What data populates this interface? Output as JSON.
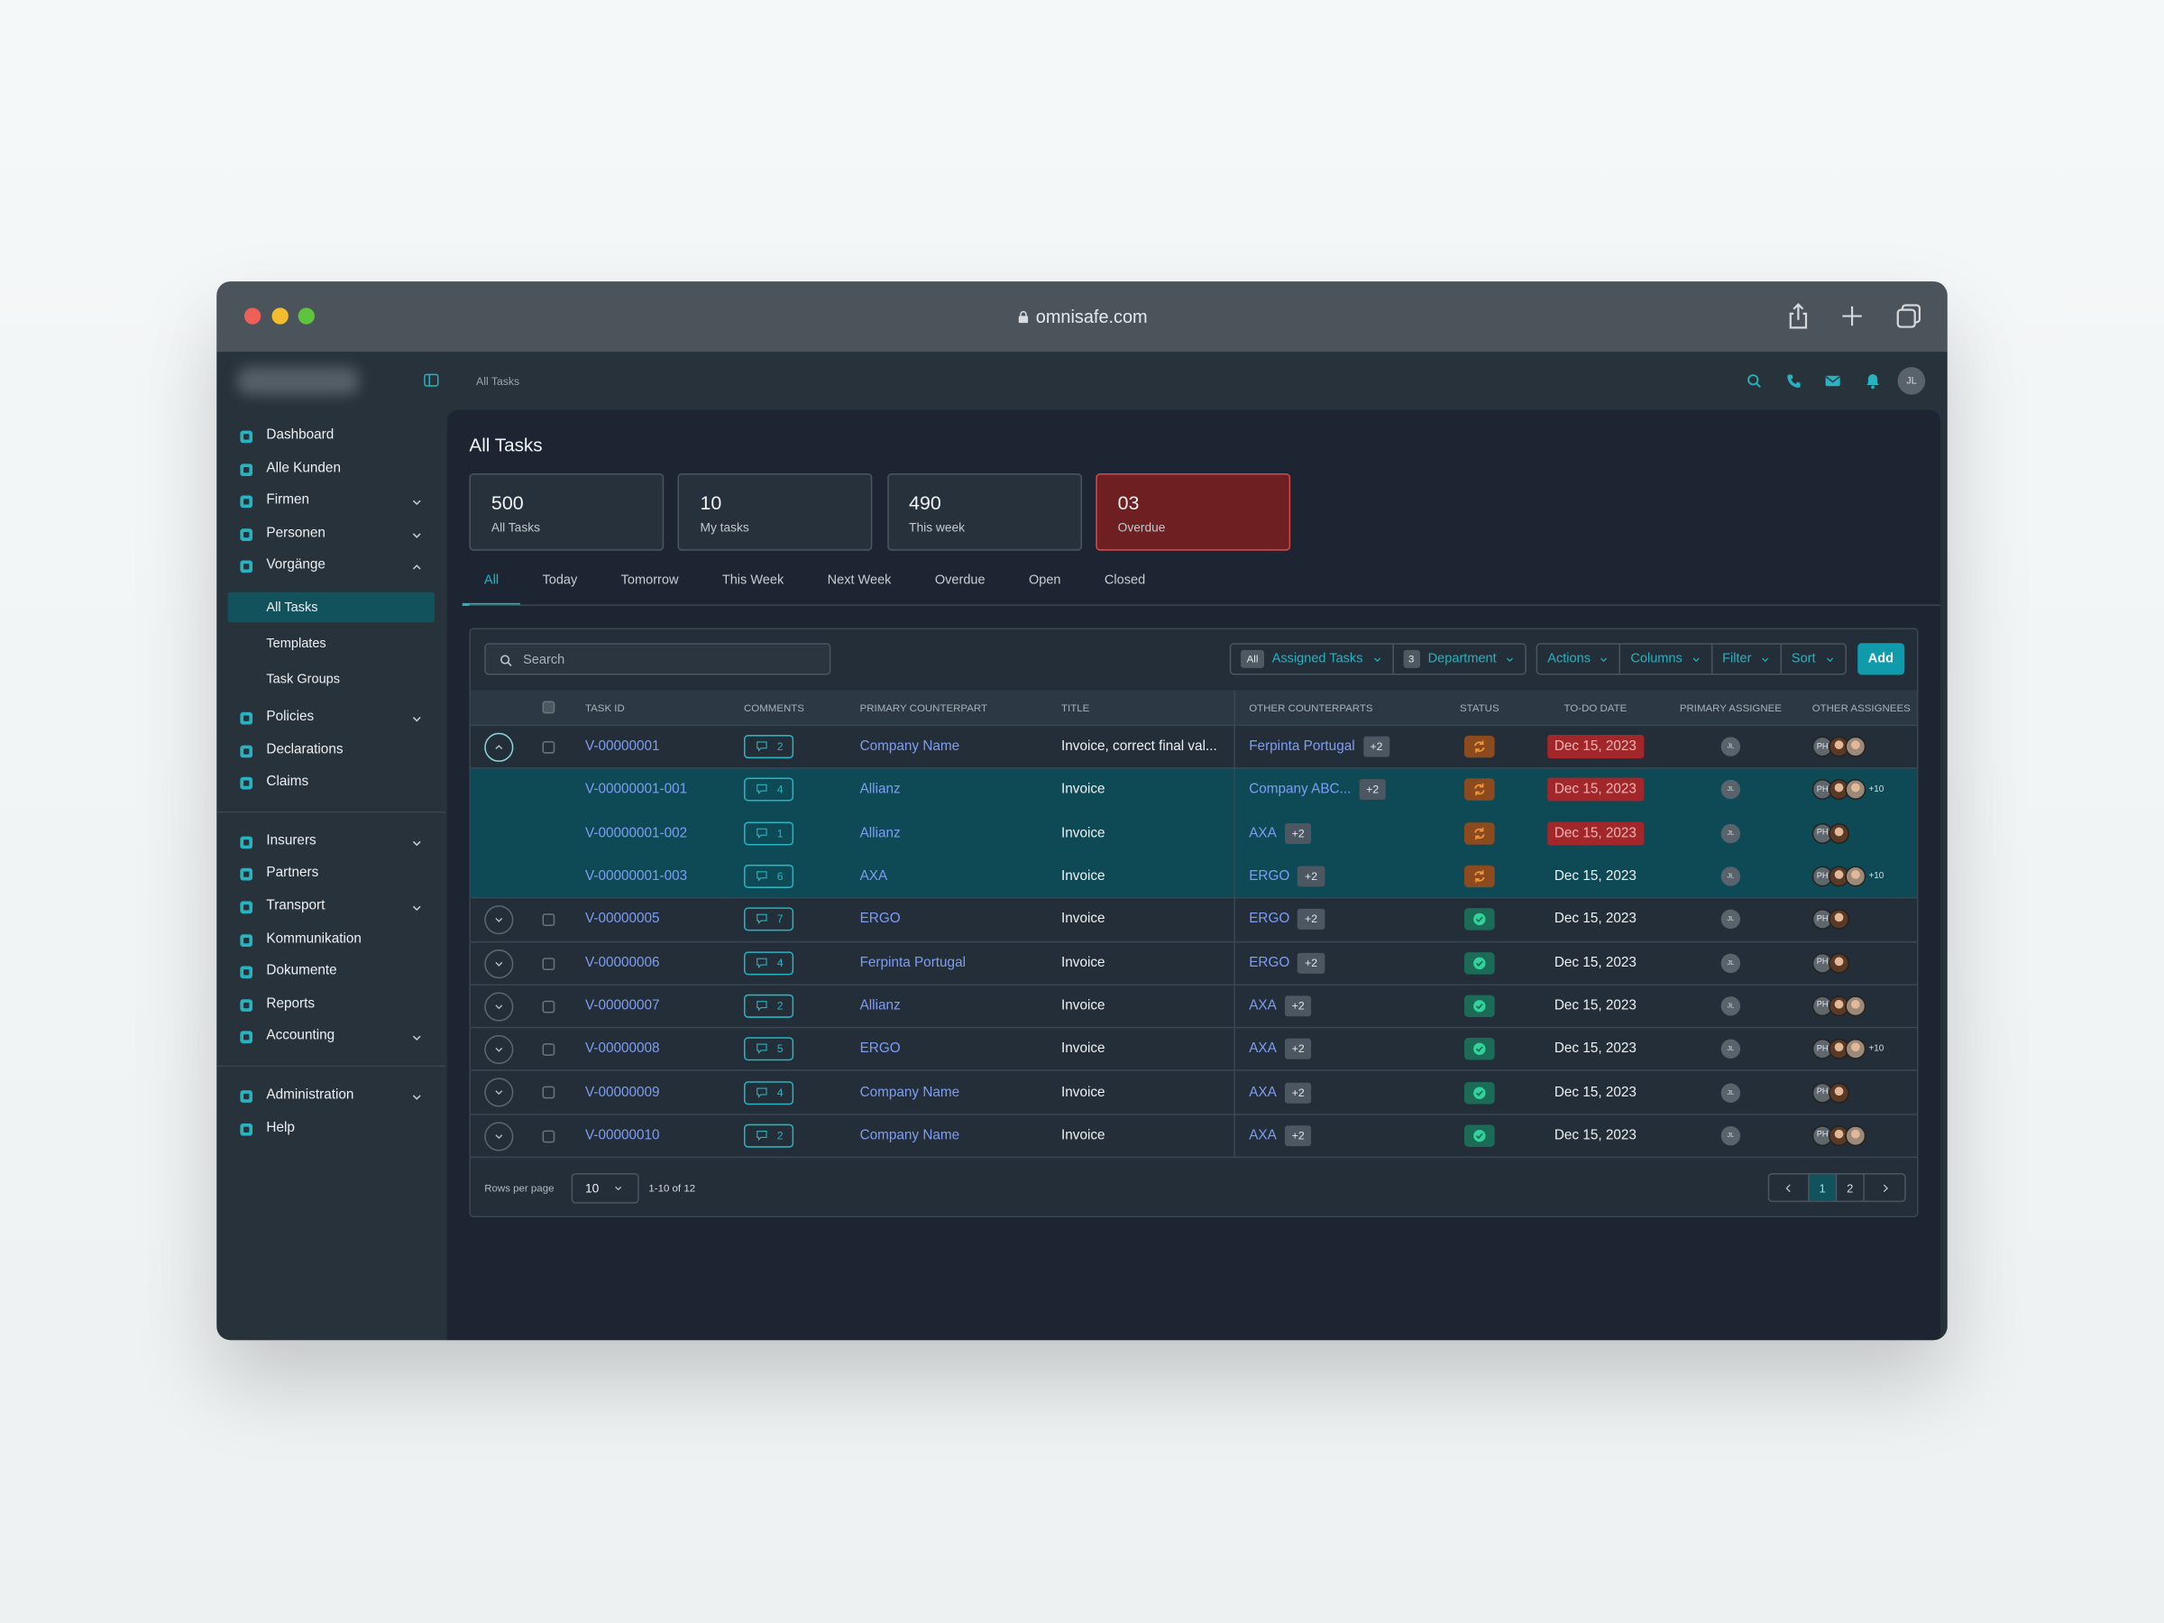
{
  "browser": {
    "url": "omnisafe.com"
  },
  "header": {
    "breadcrumb": "All Tasks",
    "user_initials": "JL"
  },
  "sidebar": {
    "sections": [
      [
        {
          "label": "Dashboard"
        },
        {
          "label": "Alle Kunden"
        },
        {
          "label": "Firmen",
          "chevron": "down"
        },
        {
          "label": "Personen",
          "chevron": "down"
        },
        {
          "label": "Vorgänge",
          "chevron": "up",
          "children": [
            {
              "label": "All Tasks",
              "active": true
            },
            {
              "label": "Templates"
            },
            {
              "label": "Task Groups"
            }
          ]
        },
        {
          "label": "Policies",
          "chevron": "down"
        },
        {
          "label": "Declarations"
        },
        {
          "label": "Claims"
        }
      ],
      [
        {
          "label": "Insurers",
          "chevron": "down"
        },
        {
          "label": "Partners"
        },
        {
          "label": "Transport",
          "chevron": "down"
        },
        {
          "label": "Kommunikation"
        },
        {
          "label": "Dokumente"
        },
        {
          "label": "Reports"
        },
        {
          "label": "Accounting",
          "chevron": "down"
        }
      ],
      [
        {
          "label": "Administration",
          "chevron": "down"
        },
        {
          "label": "Help"
        }
      ]
    ]
  },
  "page": {
    "title": "All Tasks",
    "stats": [
      {
        "value": "500",
        "label": "All Tasks"
      },
      {
        "value": "10",
        "label": "My tasks"
      },
      {
        "value": "490",
        "label": "This week"
      },
      {
        "value": "03",
        "label": "Overdue",
        "alert": true
      }
    ],
    "tabs": {
      "items": [
        "All",
        "Today",
        "Tomorrow",
        "This Week",
        "Next Week",
        "Overdue",
        "Open",
        "Closed"
      ],
      "active": 0
    }
  },
  "toolbar": {
    "search_placeholder": "Search",
    "filters": [
      {
        "badge": "All",
        "label": "Assigned Tasks"
      },
      {
        "badge": "3",
        "label": "Department"
      }
    ],
    "actions": [
      "Actions",
      "Columns",
      "Filter",
      "Sort"
    ],
    "add": "Add"
  },
  "table": {
    "columns": [
      "TASK ID",
      "COMMENTS",
      "PRIMARY COUNTERPART",
      "TITLE",
      "OTHER COUNTERPARTS",
      "STATUS",
      "TO-DO DATE",
      "PRIMARY ASSIGNEE",
      "OTHER ASSIGNEES"
    ],
    "rows": [
      {
        "kind": "parent",
        "expanded": true,
        "task_id": "V-00000001",
        "comments": "2",
        "primary": "Company Name",
        "title": "Invoice, correct final val...",
        "other": "Ferpinta Portugal",
        "other_more": "+2",
        "status": "pending",
        "date": "Dec 15, 2023",
        "overdue": true,
        "assignee": "JL",
        "lead": "PH",
        "photos": 2
      },
      {
        "kind": "child",
        "task_id": "V-00000001-001",
        "comments": "4",
        "primary": "Allianz",
        "title": "Invoice",
        "other": "Company ABC...",
        "other_more": "+2",
        "status": "pending",
        "date": "Dec 15, 2023",
        "overdue": true,
        "assignee": "JL",
        "lead": "PH",
        "photos": 2,
        "more": "+10"
      },
      {
        "kind": "child",
        "task_id": "V-00000001-002",
        "comments": "1",
        "primary": "Allianz",
        "title": "Invoice",
        "other": "AXA",
        "other_more": "+2",
        "status": "pending",
        "date": "Dec 15, 2023",
        "overdue": true,
        "assignee": "JL",
        "lead": "PH",
        "photos": 1
      },
      {
        "kind": "child",
        "task_id": "V-00000001-003",
        "comments": "6",
        "primary": "AXA",
        "title": "Invoice",
        "other": "ERGO",
        "other_more": "+2",
        "status": "pending",
        "date": "Dec 15, 2023",
        "assignee": "JL",
        "lead": "PH",
        "photos": 2,
        "more": "+10"
      },
      {
        "kind": "parent",
        "task_id": "V-00000005",
        "comments": "7",
        "primary": "ERGO",
        "title": "Invoice",
        "other": "ERGO",
        "other_more": "+2",
        "status": "done",
        "date": "Dec 15, 2023",
        "assignee": "JL",
        "lead": "PH",
        "photos": 1
      },
      {
        "kind": "parent",
        "task_id": "V-00000006",
        "comments": "4",
        "primary": "Ferpinta Portugal",
        "title": "Invoice",
        "other": "ERGO",
        "other_more": "+2",
        "status": "done",
        "date": "Dec 15, 2023",
        "assignee": "JL",
        "lead": "PH",
        "photos": 1
      },
      {
        "kind": "parent",
        "task_id": "V-00000007",
        "comments": "2",
        "primary": "Allianz",
        "title": "Invoice",
        "other": "AXA",
        "other_more": "+2",
        "status": "done",
        "date": "Dec 15, 2023",
        "assignee": "JL",
        "lead": "PH",
        "photos": 2
      },
      {
        "kind": "parent",
        "task_id": "V-00000008",
        "comments": "5",
        "primary": "ERGO",
        "title": "Invoice",
        "other": "AXA",
        "other_more": "+2",
        "status": "done",
        "date": "Dec 15, 2023",
        "assignee": "JL",
        "lead": "PH",
        "photos": 2,
        "more": "+10"
      },
      {
        "kind": "parent",
        "task_id": "V-00000009",
        "comments": "4",
        "primary": "Company Name",
        "title": "Invoice",
        "other": "AXA",
        "other_more": "+2",
        "status": "done",
        "date": "Dec 15, 2023",
        "assignee": "JL",
        "lead": "PH",
        "photos": 1
      },
      {
        "kind": "parent",
        "task_id": "V-00000010",
        "comments": "2",
        "primary": "Company Name",
        "title": "Invoice",
        "other": "AXA",
        "other_more": "+2",
        "status": "done",
        "date": "Dec 15, 2023",
        "assignee": "JL",
        "lead": "PH",
        "photos": 2
      }
    ]
  },
  "footer": {
    "rows_per_page_label": "Rows per page",
    "rows_per_page": "10",
    "range": "1-10 of 12",
    "pages": [
      "1",
      "2"
    ],
    "current_page": 0
  }
}
